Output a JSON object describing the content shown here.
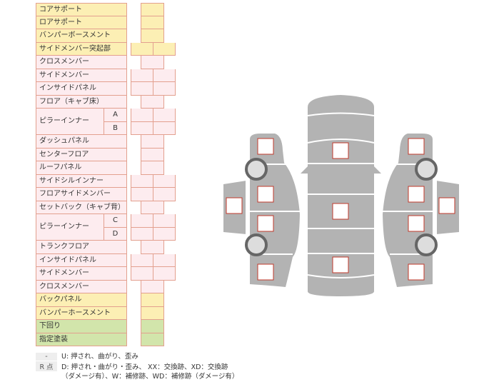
{
  "colors": {
    "yellow": "#fcefb4",
    "pink": "#fdecef",
    "green": "#d2e5ab",
    "border": "#e3a08f",
    "car": "#b3b3b3",
    "mark": "#c0392b"
  },
  "rows": [
    {
      "label": "コアサポート",
      "color": "y",
      "cells": 1
    },
    {
      "label": "ロアサポート",
      "color": "y",
      "cells": 1
    },
    {
      "label": "バンパーボースメント",
      "color": "y",
      "cells": 1
    },
    {
      "label": "サイドメンバー突起部",
      "color": "y",
      "cells": 2
    },
    {
      "label": "クロスメンバー",
      "color": "p",
      "cells": 1
    },
    {
      "label": "サイドメンバー",
      "color": "p",
      "cells": 2
    },
    {
      "label": "インサイドパネル",
      "color": "p",
      "cells": 2
    },
    {
      "label": "フロア（キャブ床）",
      "color": "p",
      "cells": 1
    },
    {
      "label": "ピラーインナー",
      "sub": "A",
      "color": "p",
      "cells": 2
    },
    {
      "label": "",
      "sub": "B",
      "color": "p",
      "cells": 2
    },
    {
      "label": "ダッシュパネル",
      "color": "p",
      "cells": 1
    },
    {
      "label": "センターフロア",
      "color": "p",
      "cells": 1
    },
    {
      "label": "ルーフパネル",
      "color": "p",
      "cells": 1
    },
    {
      "label": "サイドシルインナー",
      "color": "p",
      "cells": 2
    },
    {
      "label": "フロアサイドメンバー",
      "color": "p",
      "cells": 2
    },
    {
      "label": "セットバック（キャブ背）",
      "color": "p",
      "cells": 1
    },
    {
      "label": "ピラーインナー",
      "sub": "C",
      "color": "p",
      "cells": 2
    },
    {
      "label": "",
      "sub": "D",
      "color": "p",
      "cells": 2
    },
    {
      "label": "トランクフロア",
      "color": "p",
      "cells": 1
    },
    {
      "label": "インサイドパネル",
      "color": "p",
      "cells": 2
    },
    {
      "label": "サイドメンバー",
      "color": "p",
      "cells": 2
    },
    {
      "label": "クロスメンバー",
      "color": "p",
      "cells": 1
    },
    {
      "label": "バックパネル",
      "color": "y",
      "cells": 1
    },
    {
      "label": "バンパーホースメント",
      "color": "y",
      "cells": 1
    },
    {
      "label": "下回り",
      "color": "g",
      "cells": 1
    },
    {
      "label": "指定塗装",
      "color": "g",
      "cells": 1
    }
  ],
  "legend": {
    "key1": "-",
    "text1": "U: 押され、曲がり、歪み",
    "key2": "R 点",
    "text2": "D: 押され・曲がり・歪み、 XX：交換跡、XD：交換跡",
    "text3": "（ダメージ有）、W：補修跡、WD：補修跡（ダメージ有）"
  }
}
